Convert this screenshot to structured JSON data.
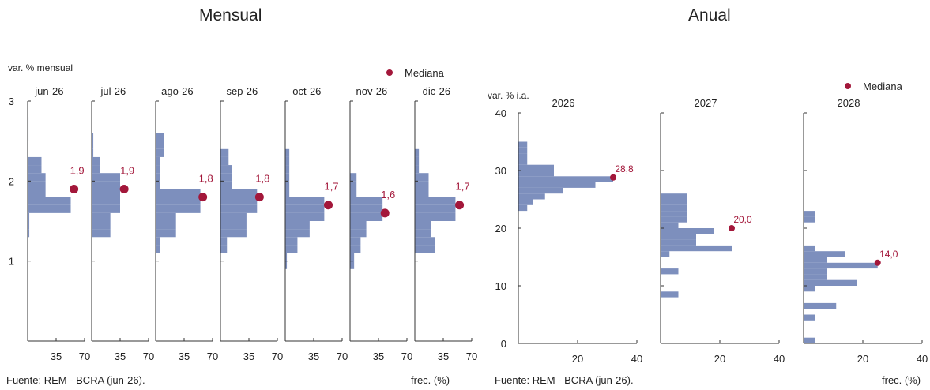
{
  "titles": {
    "left": "Mensual",
    "right": "Anual"
  },
  "source": {
    "left": "Fuente: REM - BCRA (jun-26).",
    "right": "Fuente: REM - BCRA (jun-26)."
  },
  "freq_label": "frec. (%)",
  "colors": {
    "bar": "#7d8fbd",
    "median": "#a3173a",
    "axis": "#333333",
    "text": "#222222"
  },
  "chart_data": [
    {
      "type": "bar",
      "orientation": "horizontal-histogram",
      "ylabel": "var. % mensual",
      "ylim": [
        0,
        3
      ],
      "yticks": [
        1,
        2,
        3
      ],
      "xlim": [
        0,
        70
      ],
      "xticks": [
        35,
        70
      ],
      "xlabel": "frec. (%)",
      "legend": {
        "label": "Mediana",
        "placement": "top-right"
      },
      "bin_width": 0.1,
      "panels": [
        {
          "name": "jun-26",
          "median": 1.9,
          "median_label": "1,9",
          "median_freq": 57,
          "bins": [
            {
              "y": 1.3,
              "f": 2
            },
            {
              "y": 1.4,
              "f": 2
            },
            {
              "y": 1.5,
              "f": 2
            },
            {
              "y": 1.6,
              "f": 53
            },
            {
              "y": 1.7,
              "f": 53
            },
            {
              "y": 1.8,
              "f": 22
            },
            {
              "y": 1.9,
              "f": 22
            },
            {
              "y": 2.0,
              "f": 22
            },
            {
              "y": 2.1,
              "f": 17
            },
            {
              "y": 2.2,
              "f": 17
            },
            {
              "y": 2.5,
              "f": 1
            },
            {
              "y": 2.6,
              "f": 1
            },
            {
              "y": 2.7,
              "f": 1
            }
          ]
        },
        {
          "name": "jul-26",
          "median": 1.9,
          "median_label": "1,9",
          "median_freq": 40,
          "bins": [
            {
              "y": 1.3,
              "f": 23
            },
            {
              "y": 1.4,
              "f": 23
            },
            {
              "y": 1.5,
              "f": 23
            },
            {
              "y": 1.6,
              "f": 35
            },
            {
              "y": 1.7,
              "f": 35
            },
            {
              "y": 1.8,
              "f": 35
            },
            {
              "y": 1.9,
              "f": 35
            },
            {
              "y": 2.0,
              "f": 35
            },
            {
              "y": 2.1,
              "f": 10
            },
            {
              "y": 2.2,
              "f": 10
            },
            {
              "y": 2.3,
              "f": 2
            },
            {
              "y": 2.4,
              "f": 2
            },
            {
              "y": 2.5,
              "f": 2
            }
          ]
        },
        {
          "name": "ago-26",
          "median": 1.8,
          "median_label": "1,8",
          "median_freq": 58,
          "bins": [
            {
              "y": 1.1,
              "f": 5
            },
            {
              "y": 1.2,
              "f": 5
            },
            {
              "y": 1.3,
              "f": 25
            },
            {
              "y": 1.4,
              "f": 25
            },
            {
              "y": 1.5,
              "f": 25
            },
            {
              "y": 1.6,
              "f": 55
            },
            {
              "y": 1.7,
              "f": 55
            },
            {
              "y": 1.8,
              "f": 55
            },
            {
              "y": 1.9,
              "f": 5
            },
            {
              "y": 2.0,
              "f": 5
            },
            {
              "y": 2.1,
              "f": 5
            },
            {
              "y": 2.2,
              "f": 5
            },
            {
              "y": 2.3,
              "f": 10
            },
            {
              "y": 2.4,
              "f": 10
            },
            {
              "y": 2.5,
              "f": 10
            }
          ]
        },
        {
          "name": "sep-26",
          "median": 1.8,
          "median_label": "1,8",
          "median_freq": 48,
          "bins": [
            {
              "y": 1.1,
              "f": 8
            },
            {
              "y": 1.2,
              "f": 8
            },
            {
              "y": 1.3,
              "f": 32
            },
            {
              "y": 1.4,
              "f": 32
            },
            {
              "y": 1.5,
              "f": 32
            },
            {
              "y": 1.6,
              "f": 45
            },
            {
              "y": 1.7,
              "f": 45
            },
            {
              "y": 1.8,
              "f": 45
            },
            {
              "y": 1.9,
              "f": 14
            },
            {
              "y": 2.0,
              "f": 14
            },
            {
              "y": 2.1,
              "f": 14
            },
            {
              "y": 2.2,
              "f": 10
            },
            {
              "y": 2.3,
              "f": 10
            }
          ]
        },
        {
          "name": "oct-26",
          "median": 1.7,
          "median_label": "1,7",
          "median_freq": 53,
          "bins": [
            {
              "y": 0.9,
              "f": 2
            },
            {
              "y": 1.0,
              "f": 2
            },
            {
              "y": 1.1,
              "f": 15
            },
            {
              "y": 1.2,
              "f": 15
            },
            {
              "y": 1.3,
              "f": 30
            },
            {
              "y": 1.4,
              "f": 30
            },
            {
              "y": 1.5,
              "f": 48
            },
            {
              "y": 1.6,
              "f": 48
            },
            {
              "y": 1.7,
              "f": 48
            },
            {
              "y": 1.8,
              "f": 5
            },
            {
              "y": 1.9,
              "f": 5
            },
            {
              "y": 2.0,
              "f": 5
            },
            {
              "y": 2.1,
              "f": 5
            },
            {
              "y": 2.2,
              "f": 5
            },
            {
              "y": 2.3,
              "f": 5
            }
          ]
        },
        {
          "name": "nov-26",
          "median": 1.6,
          "median_label": "1,6",
          "median_freq": 43,
          "bins": [
            {
              "y": 0.9,
              "f": 5
            },
            {
              "y": 1.0,
              "f": 5
            },
            {
              "y": 1.1,
              "f": 13
            },
            {
              "y": 1.2,
              "f": 13
            },
            {
              "y": 1.3,
              "f": 20
            },
            {
              "y": 1.4,
              "f": 20
            },
            {
              "y": 1.5,
              "f": 40
            },
            {
              "y": 1.6,
              "f": 40
            },
            {
              "y": 1.7,
              "f": 40
            },
            {
              "y": 1.8,
              "f": 8
            },
            {
              "y": 1.9,
              "f": 8
            },
            {
              "y": 2.0,
              "f": 8
            }
          ]
        },
        {
          "name": "dic-26",
          "median": 1.7,
          "median_label": "1,7",
          "median_freq": 55,
          "bins": [
            {
              "y": 1.1,
              "f": 25
            },
            {
              "y": 1.2,
              "f": 25
            },
            {
              "y": 1.3,
              "f": 20
            },
            {
              "y": 1.4,
              "f": 20
            },
            {
              "y": 1.5,
              "f": 50
            },
            {
              "y": 1.6,
              "f": 50
            },
            {
              "y": 1.7,
              "f": 50
            },
            {
              "y": 1.8,
              "f": 17
            },
            {
              "y": 1.9,
              "f": 17
            },
            {
              "y": 2.0,
              "f": 17
            },
            {
              "y": 2.1,
              "f": 5
            },
            {
              "y": 2.2,
              "f": 5
            },
            {
              "y": 2.3,
              "f": 5
            }
          ]
        }
      ]
    },
    {
      "type": "bar",
      "orientation": "horizontal-histogram",
      "ylabel": "var. % i.a.",
      "ylim": [
        0,
        40
      ],
      "yticks": [
        0,
        10,
        20,
        30,
        40
      ],
      "xlim": [
        0,
        40
      ],
      "xticks": [
        20,
        40
      ],
      "xlabel": "frec. (%)",
      "legend": {
        "label": "Mediana",
        "placement": "top-right"
      },
      "bin_width": 1,
      "panels": [
        {
          "name": "2026",
          "median": 28.8,
          "median_label": "28,8",
          "median_freq": 32,
          "bins": [
            {
              "y": 23,
              "f": 3
            },
            {
              "y": 24,
              "f": 5
            },
            {
              "y": 25,
              "f": 9
            },
            {
              "y": 26,
              "f": 15
            },
            {
              "y": 27,
              "f": 26
            },
            {
              "y": 28,
              "f": 32
            },
            {
              "y": 29,
              "f": 12
            },
            {
              "y": 30,
              "f": 12
            },
            {
              "y": 31,
              "f": 3
            },
            {
              "y": 32,
              "f": 3
            },
            {
              "y": 33,
              "f": 3
            },
            {
              "y": 34,
              "f": 3
            }
          ]
        },
        {
          "name": "2027",
          "median": 20.0,
          "median_label": "20,0",
          "median_freq": 24,
          "bins": [
            {
              "y": 8,
              "f": 6
            },
            {
              "y": 12,
              "f": 6
            },
            {
              "y": 15,
              "f": 3
            },
            {
              "y": 16,
              "f": 24
            },
            {
              "y": 17,
              "f": 12
            },
            {
              "y": 18,
              "f": 12
            },
            {
              "y": 19,
              "f": 18
            },
            {
              "y": 20,
              "f": 6
            },
            {
              "y": 21,
              "f": 9
            },
            {
              "y": 22,
              "f": 9
            },
            {
              "y": 23,
              "f": 9
            },
            {
              "y": 24,
              "f": 9
            },
            {
              "y": 25,
              "f": 9
            }
          ]
        },
        {
          "name": "2028",
          "median": 14.0,
          "median_label": "14,0",
          "median_freq": 25,
          "bins": [
            {
              "y": 0,
              "f": 4
            },
            {
              "y": 4,
              "f": 4
            },
            {
              "y": 6,
              "f": 11
            },
            {
              "y": 9,
              "f": 4
            },
            {
              "y": 10,
              "f": 18
            },
            {
              "y": 11,
              "f": 8
            },
            {
              "y": 12,
              "f": 8
            },
            {
              "y": 13,
              "f": 25
            },
            {
              "y": 14,
              "f": 8
            },
            {
              "y": 15,
              "f": 14
            },
            {
              "y": 16,
              "f": 4
            },
            {
              "y": 21,
              "f": 4
            },
            {
              "y": 22,
              "f": 4
            }
          ]
        }
      ]
    }
  ]
}
